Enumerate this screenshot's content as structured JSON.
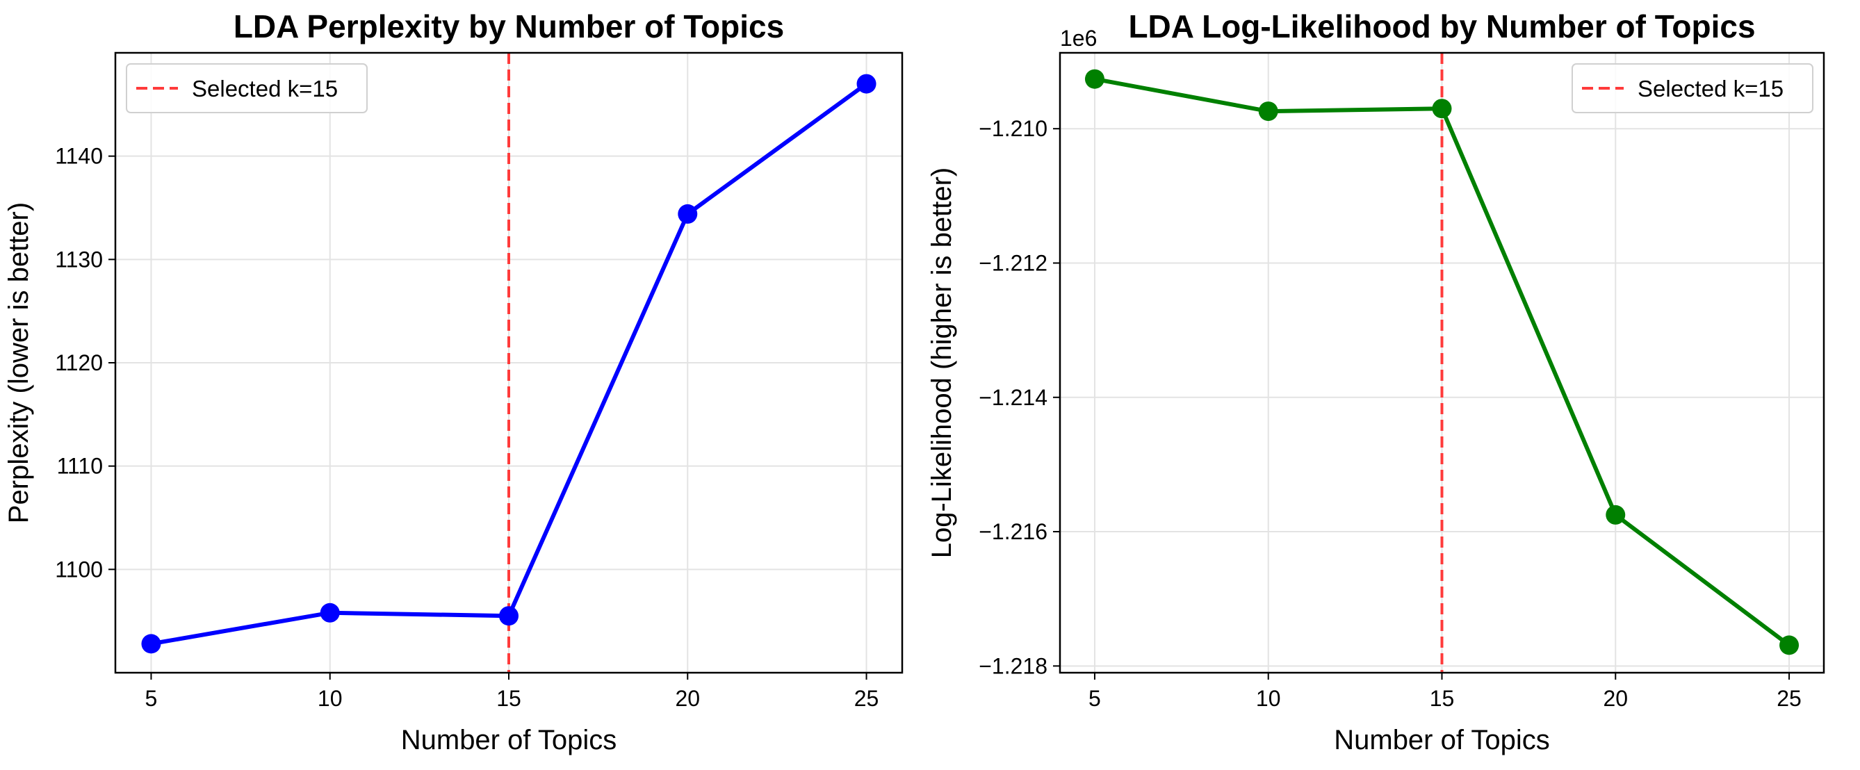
{
  "chart_data": [
    {
      "type": "line",
      "title": "LDA Perplexity by Number of Topics",
      "xlabel": "Number of Topics",
      "ylabel": "Perplexity (lower is better)",
      "x": [
        5,
        10,
        15,
        20,
        25
      ],
      "series": [
        {
          "values": [
            1092.8,
            1095.8,
            1095.5,
            1134.4,
            1147.0
          ],
          "color": "#0000ff"
        }
      ],
      "xticks": [
        5,
        10,
        15,
        20,
        25
      ],
      "xtick_labels": [
        "5",
        "10",
        "15",
        "20",
        "25"
      ],
      "yticks": [
        1100,
        1110,
        1120,
        1130,
        1140
      ],
      "ytick_labels": [
        "1100",
        "1110",
        "1120",
        "1130",
        "1140"
      ],
      "xlim": [
        4,
        26
      ],
      "ylim": [
        1090.0,
        1150.0
      ],
      "reference_line": {
        "x": 15,
        "label": "Selected k=15",
        "color": "#ff3b3b",
        "style": "dashed"
      },
      "legend": {
        "position": "upper-left"
      },
      "grid": true
    },
    {
      "type": "line",
      "title": "LDA Log-Likelihood by Number of Topics",
      "xlabel": "Number of Topics",
      "ylabel": "Log-Likelihood (higher is better)",
      "y_offset_label": "1e6",
      "x": [
        5,
        10,
        15,
        20,
        25
      ],
      "series": [
        {
          "values": [
            -1.20926,
            -1.20974,
            -1.2097,
            -1.21575,
            -1.21769
          ],
          "color": "#008000"
        }
      ],
      "xticks": [
        5,
        10,
        15,
        20,
        25
      ],
      "xtick_labels": [
        "5",
        "10",
        "15",
        "20",
        "25"
      ],
      "yticks": [
        -1.21,
        -1.212,
        -1.214,
        -1.216,
        -1.218
      ],
      "ytick_labels": [
        "−1.210",
        "−1.212",
        "−1.214",
        "−1.216",
        "−1.218"
      ],
      "xlim": [
        4,
        26
      ],
      "ylim": [
        -1.2181,
        -1.20887
      ],
      "reference_line": {
        "x": 15,
        "label": "Selected k=15",
        "color": "#ff3b3b",
        "style": "dashed"
      },
      "legend": {
        "position": "upper-right"
      },
      "grid": true
    }
  ]
}
